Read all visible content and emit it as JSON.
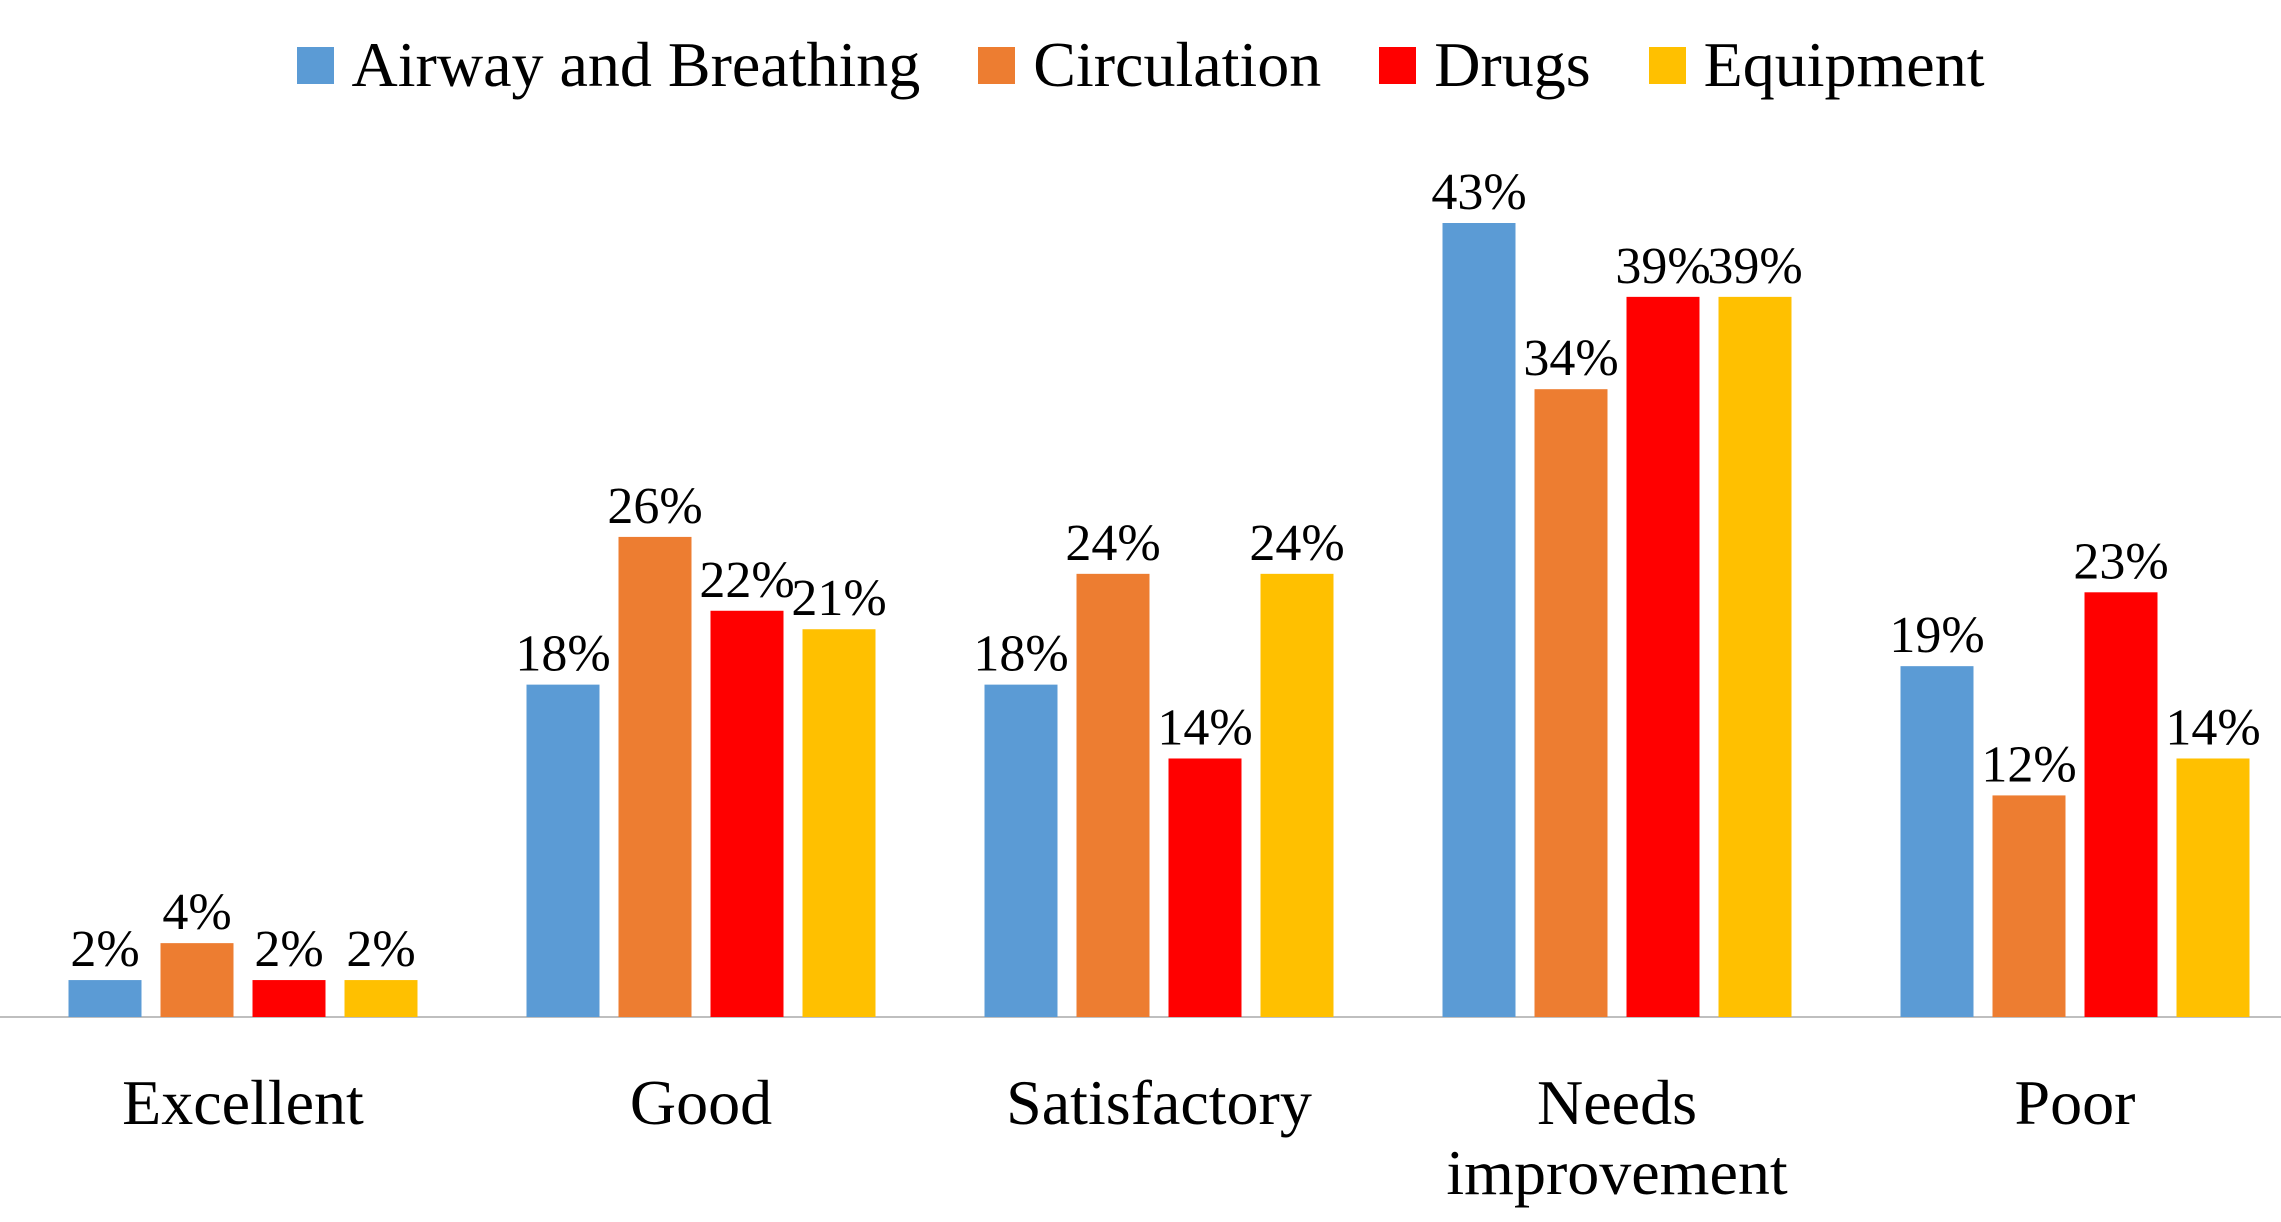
{
  "chart_data": {
    "type": "bar",
    "categories": [
      "Excellent",
      "Good",
      "Satisfactory",
      "Needs improvement",
      "Poor"
    ],
    "series": [
      {
        "name": "Airway and Breathing",
        "color": "#5b9bd5",
        "values": [
          2,
          18,
          18,
          43,
          19
        ],
        "value_labels": [
          "2%",
          "18%",
          "18%",
          "43%",
          "19%"
        ]
      },
      {
        "name": "Circulation",
        "color": "#ed7d31",
        "values": [
          4,
          26,
          24,
          34,
          12
        ],
        "value_labels": [
          "4%",
          "26%",
          "24%",
          "34%",
          "12%"
        ]
      },
      {
        "name": "Drugs",
        "color": "#ff0000",
        "values": [
          2,
          22,
          14,
          39,
          23
        ],
        "value_labels": [
          "2%",
          "22%",
          "14%",
          "39%",
          "23%"
        ]
      },
      {
        "name": "Equipment",
        "color": "#ffc000",
        "values": [
          2,
          21,
          24,
          39,
          14
        ],
        "value_labels": [
          "2%",
          "21%",
          "24%",
          "39%",
          "14%"
        ]
      }
    ],
    "legend": "top"
  }
}
